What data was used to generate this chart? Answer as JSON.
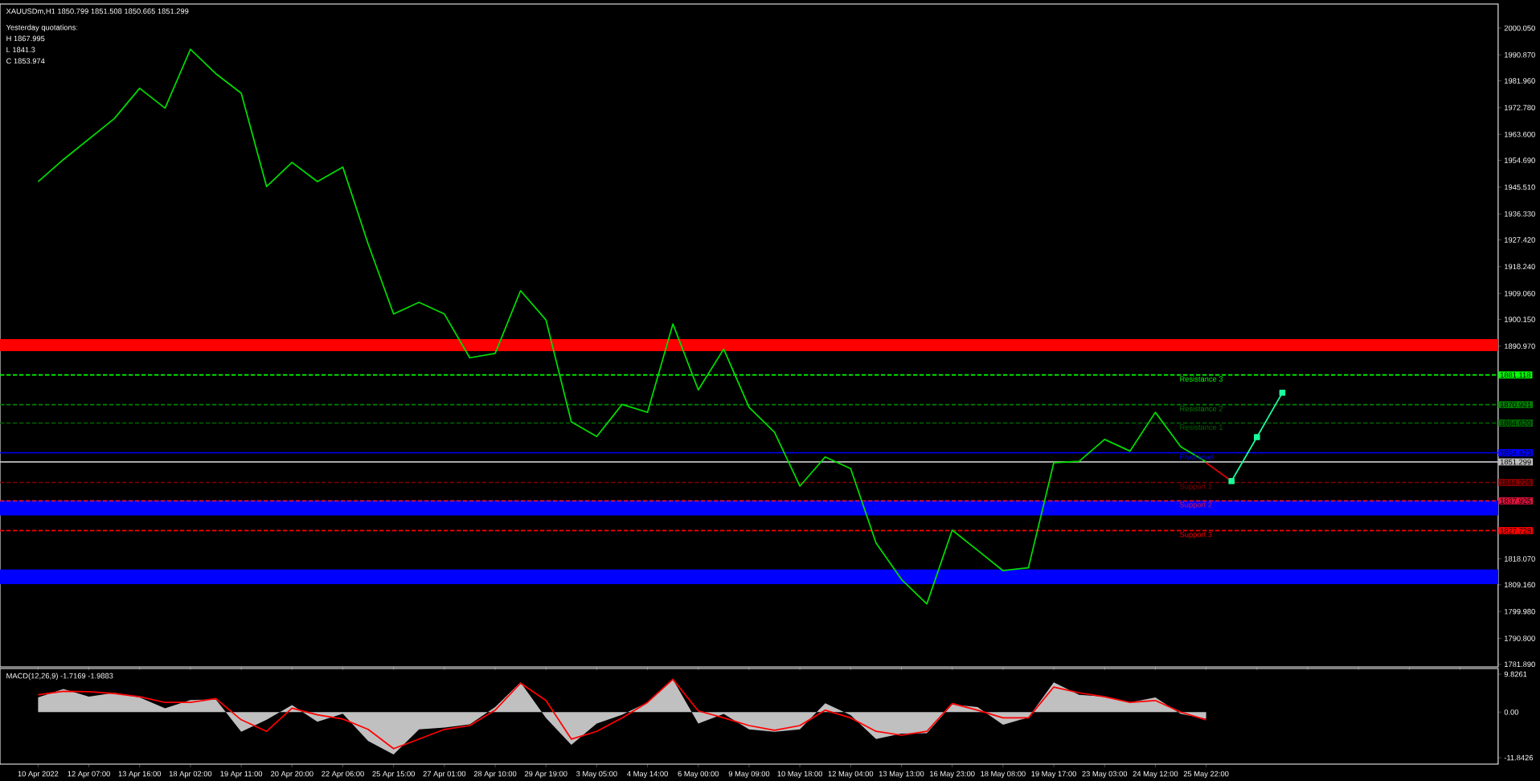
{
  "chart_data": [
    {
      "type": "line",
      "title": "XAUUSDm,H1  1850.799 1851.508 1850.665 1851.299",
      "annotations": [
        "Yesterday quotations:",
        "H 1867.995",
        "L 1841.3",
        "C 1853.974",
        {
          "text": "Resistance 3",
          "y": 1881.118
        },
        {
          "text": "Resistance 2",
          "y": 1870.921
        },
        {
          "text": "Resistance 1",
          "y": 1864.62
        },
        {
          "text": "Pivot level",
          "y": 1854.423
        },
        {
          "text": "Support 1",
          "y": 1844.226
        },
        {
          "text": "Support 2",
          "y": 1837.925
        },
        {
          "text": "Support 3",
          "y": 1827.728
        }
      ],
      "categories": [
        null,
        null,
        null,
        null,
        null,
        null,
        null,
        null,
        null,
        null,
        null,
        null,
        null,
        null,
        null,
        null,
        null,
        null,
        null,
        null,
        null,
        null,
        null,
        null,
        null,
        null,
        null,
        null,
        null,
        null,
        null,
        null,
        null,
        null,
        null,
        null,
        null,
        null,
        null,
        null,
        null,
        null,
        null,
        null,
        null,
        null,
        null,
        null,
        null,
        null,
        null,
        null,
        null,
        null,
        null,
        null,
        null,
        null
      ],
      "series": [
        {
          "color": "#00dd00",
          "values": [
            1947.4,
            1955,
            1962,
            1969,
            1979.4,
            1972.6,
            1992.8,
            1984.4,
            1977.7,
            1945.7,
            1954,
            1947.4,
            1952.4,
            1926,
            1902,
            1906,
            1902,
            1887,
            1888.5,
            1910,
            1900,
            1865,
            1860,
            1871,
            1868.3,
            1898.6,
            1876,
            1890,
            1870,
            1861.5,
            1843,
            1853,
            1849,
            1823.5,
            1811,
            1802.6,
            1827.9,
            1821,
            1814,
            1815,
            1851,
            1851.5,
            1859,
            1855,
            1868.3,
            1856.5,
            1851.3,
            null,
            null,
            null,
            null,
            null,
            null,
            null,
            null,
            null,
            null,
            null
          ]
        },
        {
          "color": "#e60000",
          "values": [
            null,
            null,
            null,
            null,
            null,
            null,
            null,
            null,
            null,
            null,
            null,
            null,
            null,
            null,
            null,
            null,
            null,
            null,
            null,
            null,
            null,
            null,
            null,
            null,
            null,
            null,
            null,
            null,
            null,
            null,
            null,
            null,
            null,
            null,
            null,
            null,
            null,
            null,
            null,
            null,
            null,
            null,
            null,
            null,
            null,
            null,
            1851.0,
            1844.7,
            null,
            null,
            null,
            null,
            null,
            null,
            null,
            null,
            null,
            null
          ]
        },
        {
          "color": "#1aff9c",
          "marker": "square",
          "values": [
            null,
            null,
            null,
            null,
            null,
            null,
            null,
            null,
            null,
            null,
            null,
            null,
            null,
            null,
            null,
            null,
            null,
            null,
            null,
            null,
            null,
            null,
            null,
            null,
            null,
            null,
            null,
            null,
            null,
            null,
            null,
            null,
            null,
            null,
            null,
            null,
            null,
            null,
            null,
            null,
            null,
            null,
            null,
            null,
            null,
            null,
            null,
            1844.7,
            1859.8,
            1875.0,
            null,
            null,
            null,
            null,
            null,
            null,
            null,
            null
          ]
        }
      ],
      "ylim": [
        1781.0,
        2008.3
      ],
      "yticks": [
        {
          "value": 2000.05,
          "label": "2000.050"
        },
        {
          "value": 1990.87,
          "label": "1990.870"
        },
        {
          "value": 1981.96,
          "label": "1981.960"
        },
        {
          "value": 1972.78,
          "label": "1972.780"
        },
        {
          "value": 1963.6,
          "label": "1963.600"
        },
        {
          "value": 1954.69,
          "label": "1954.690"
        },
        {
          "value": 1945.51,
          "label": "1945.510"
        },
        {
          "value": 1936.33,
          "label": "1936.330"
        },
        {
          "value": 1927.42,
          "label": "1927.420"
        },
        {
          "value": 1918.24,
          "label": "1918.240"
        },
        {
          "value": 1909.06,
          "label": "1909.060"
        },
        {
          "value": 1900.15,
          "label": "1900.150"
        },
        {
          "value": 1890.97,
          "label": "1890.970"
        },
        {
          "value": 1818.07,
          "label": "1818.070"
        },
        {
          "value": 1809.16,
          "label": "1809.160"
        },
        {
          "value": 1799.98,
          "label": "1799.980"
        },
        {
          "value": 1790.8,
          "label": "1790.800"
        },
        {
          "value": 1781.89,
          "label": "1781.890"
        }
      ],
      "ref_lines": [
        {
          "axis": "y",
          "value": 1881.118,
          "label": "1881.118",
          "color": "#00ff00",
          "line_style": "dashed"
        },
        {
          "axis": "y",
          "value": 1870.921,
          "label": "1870.921",
          "color": "#008000",
          "line_style": "dashed"
        },
        {
          "axis": "y",
          "value": 1864.62,
          "label": "1864.620",
          "color": "#006400",
          "line_style": "dashed"
        },
        {
          "axis": "y",
          "value": 1854.423,
          "label": "1854.423",
          "color": "#0000ff",
          "line_style": "solid"
        },
        {
          "axis": "y",
          "value": 1851.299,
          "label": "1851.299",
          "color": "#c0c0c0",
          "line_style": "solid"
        },
        {
          "axis": "y",
          "value": 1844.226,
          "label": "1844.226",
          "color": "#800000",
          "line_style": "dashed"
        },
        {
          "axis": "y",
          "value": 1837.925,
          "label": "1837.925",
          "color": "#dc143c",
          "line_style": "dashed"
        },
        {
          "axis": "y",
          "value": 1827.728,
          "label": "1827.728",
          "color": "#ff0000",
          "line_style": "dashed"
        }
      ],
      "bands": [
        {
          "axis": "y",
          "from": 1889.3,
          "to": 1893.4,
          "color": "#ff0000"
        },
        {
          "axis": "y",
          "from": 1832.9,
          "to": 1838.0,
          "color": "#0000ff"
        },
        {
          "axis": "y",
          "from": 1809.4,
          "to": 1814.4,
          "color": "#0000ff"
        }
      ]
    },
    {
      "type": "area",
      "title": "MACD(12,26,9) -1.7169 -1.9883",
      "categories": [
        "10 Apr 2022",
        null,
        "12 Apr 07:00",
        null,
        "13 Apr 16:00",
        null,
        "18 Apr 02:00",
        null,
        "19 Apr 11:00",
        null,
        "20 Apr 20:00",
        null,
        "22 Apr 06:00",
        null,
        "25 Apr 15:00",
        null,
        "27 Apr 01:00",
        null,
        "28 Apr 10:00",
        null,
        "29 Apr 19:00",
        null,
        "3 May 05:00",
        null,
        "4 May 14:00",
        null,
        "6 May 00:00",
        null,
        "9 May 09:00",
        null,
        "10 May 18:00",
        null,
        "12 May 04:00",
        null,
        "13 May 13:00",
        null,
        "16 May 23:00",
        null,
        "18 May 08:00",
        null,
        "19 May 17:00",
        null,
        "23 May 03:00",
        null,
        "24 May 12:00",
        null,
        "25 May 22:00",
        null,
        null,
        null,
        null,
        null,
        null,
        null,
        null,
        null,
        null,
        null
      ],
      "series": [
        {
          "color": "#c0c0c0",
          "values": [
            3.8,
            6.0,
            4.0,
            5.0,
            3.8,
            1.0,
            3.1,
            3.3,
            -5.1,
            -2.0,
            1.8,
            -2.5,
            -0.4,
            -7.5,
            -11.0,
            -4.5,
            -4.0,
            -3.2,
            1.3,
            7.7,
            -1.5,
            -8.5,
            -3.0,
            -0.7,
            2.5,
            8.5,
            -3.0,
            -0.5,
            -4.5,
            -5.1,
            -4.5,
            2.3,
            -0.8,
            -7.0,
            -5.6,
            -5.5,
            2.0,
            1.3,
            -3.3,
            -1.4,
            7.7,
            4.5,
            4.0,
            2.5,
            3.8,
            -0.5,
            -1.7,
            null,
            null,
            null,
            null,
            null,
            null,
            null,
            null,
            null,
            null,
            null
          ]
        },
        {
          "type": "line",
          "color": "#ff0000",
          "values": [
            4.5,
            5.4,
            5.3,
            4.8,
            4.0,
            2.5,
            2.5,
            3.5,
            -2.0,
            -5.0,
            1.0,
            -0.7,
            -1.8,
            -4.5,
            -9.5,
            -7.0,
            -4.5,
            -3.5,
            0.5,
            7.5,
            3.0,
            -7.0,
            -5.0,
            -1.5,
            2.5,
            8.5,
            0.3,
            -1.5,
            -3.5,
            -4.7,
            -3.5,
            0.5,
            -1.5,
            -5.0,
            -6.0,
            -5.0,
            2.2,
            0.5,
            -1.5,
            -1.5,
            6.5,
            5.0,
            4.0,
            2.5,
            3.0,
            0.0,
            -2.0,
            null,
            null,
            null,
            null,
            null,
            null,
            null,
            null,
            null,
            null,
            null
          ]
        }
      ],
      "ylim": [
        -13.5,
        11.3
      ],
      "yticks": [
        9.8261,
        {
          "value": 0,
          "label": "0.00"
        },
        -11.8426
      ]
    }
  ]
}
